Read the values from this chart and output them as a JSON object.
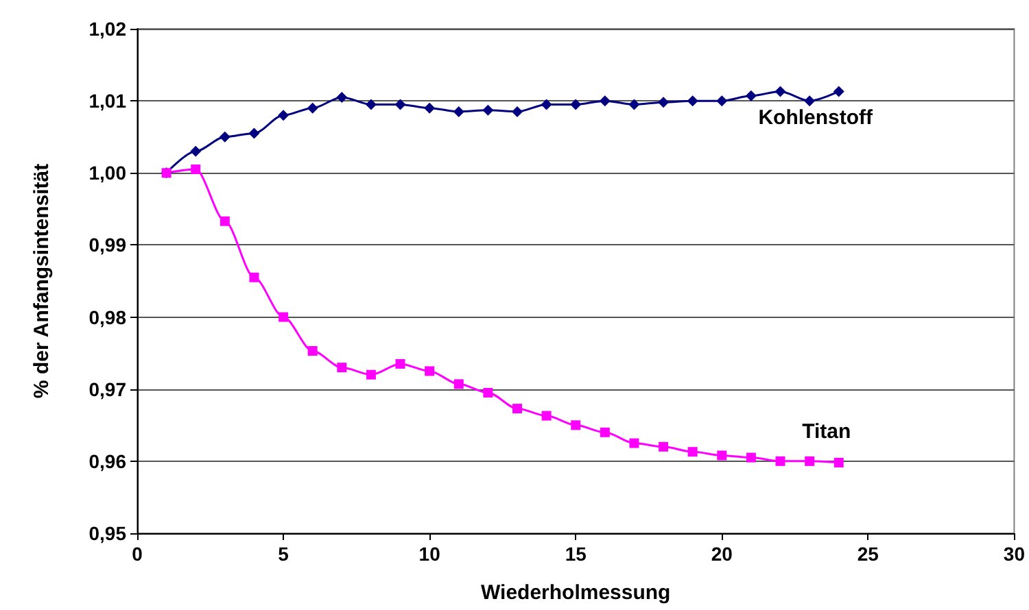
{
  "chart_data": {
    "type": "line",
    "xlabel": "Wiederholmessung",
    "ylabel": "% der Anfangsintensität",
    "x": [
      1,
      2,
      3,
      4,
      5,
      6,
      7,
      8,
      9,
      10,
      11,
      12,
      13,
      14,
      15,
      16,
      17,
      18,
      19,
      20,
      21,
      22,
      23,
      24
    ],
    "series": [
      {
        "name": "Kohlenstoff",
        "color": "#000080",
        "marker": "diamond",
        "values": [
          1.0,
          1.003,
          1.005,
          1.0055,
          1.008,
          1.009,
          1.0105,
          1.0095,
          1.0095,
          1.009,
          1.0085,
          1.0087,
          1.0085,
          1.0095,
          1.0095,
          1.01,
          1.0095,
          1.0098,
          1.01,
          1.01,
          1.0107,
          1.0113,
          1.01,
          1.0113
        ]
      },
      {
        "name": "Titan",
        "color": "#ff00ff",
        "marker": "square",
        "values": [
          1.0,
          1.0005,
          0.9933,
          0.9855,
          0.98,
          0.9753,
          0.973,
          0.972,
          0.9735,
          0.9725,
          0.9707,
          0.9695,
          0.9673,
          0.9663,
          0.965,
          0.964,
          0.9625,
          0.962,
          0.9613,
          0.9608,
          0.9605,
          0.96,
          0.96,
          0.9598
        ]
      }
    ],
    "xlim": [
      0,
      30
    ],
    "xticks": [
      0,
      5,
      10,
      15,
      20,
      25,
      30
    ],
    "ylim": [
      0.95,
      1.02
    ],
    "yticks": [
      {
        "value": 0.95,
        "label": "0,95"
      },
      {
        "value": 0.96,
        "label": "0,96"
      },
      {
        "value": 0.97,
        "label": "0,97"
      },
      {
        "value": 0.98,
        "label": "0,98"
      },
      {
        "value": 0.99,
        "label": "0,99"
      },
      {
        "value": 1.0,
        "label": "1,00"
      },
      {
        "value": 1.01,
        "label": "1,01"
      },
      {
        "value": 1.02,
        "label": "1,02"
      }
    ],
    "grid": "y",
    "legend": false,
    "line_style": "solid"
  }
}
